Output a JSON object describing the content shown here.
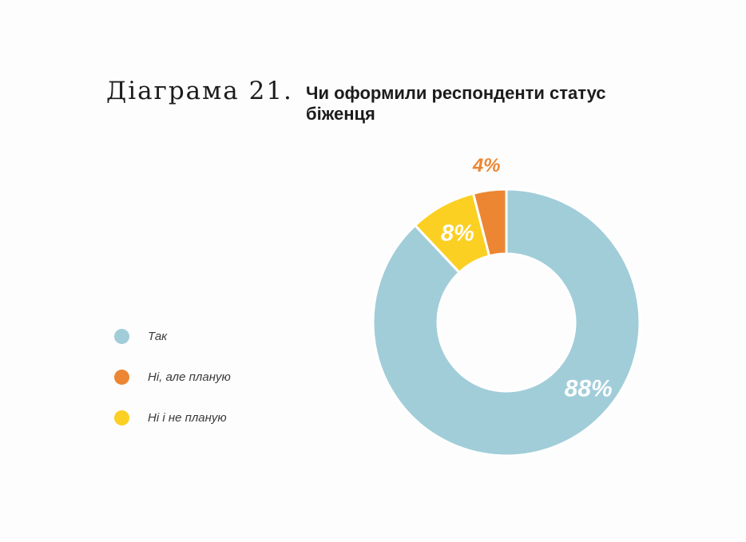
{
  "header": {
    "label": "Діаграма 21.",
    "title": "Чи оформили респонденти статус біженця"
  },
  "colors": {
    "tak": "#a1cdd9",
    "ni_ale_planuyu": "#ec8633",
    "ni_i_ne_planuyu": "#fccf23",
    "label_inside": "#ffffff",
    "label_outside": "#ec8633"
  },
  "chart_data": {
    "type": "pie",
    "donut": true,
    "title": "Чи оформили респонденти статус біженця",
    "legend_position": "left",
    "slices": [
      {
        "name": "Так",
        "value": 88,
        "label": "88%",
        "color": "#a1cdd9"
      },
      {
        "name": "Ні, але планую",
        "value": 4,
        "label": "4%",
        "color": "#ec8633"
      },
      {
        "name": "Ні і не планую",
        "value": 8,
        "label": "8%",
        "color": "#fccf23"
      }
    ]
  },
  "legend": {
    "items": [
      {
        "label": "Так",
        "color": "#a1cdd9"
      },
      {
        "label": "Ні, але планую",
        "color": "#ec8633"
      },
      {
        "label": "Ні і не планую",
        "color": "#fccf23"
      }
    ]
  }
}
